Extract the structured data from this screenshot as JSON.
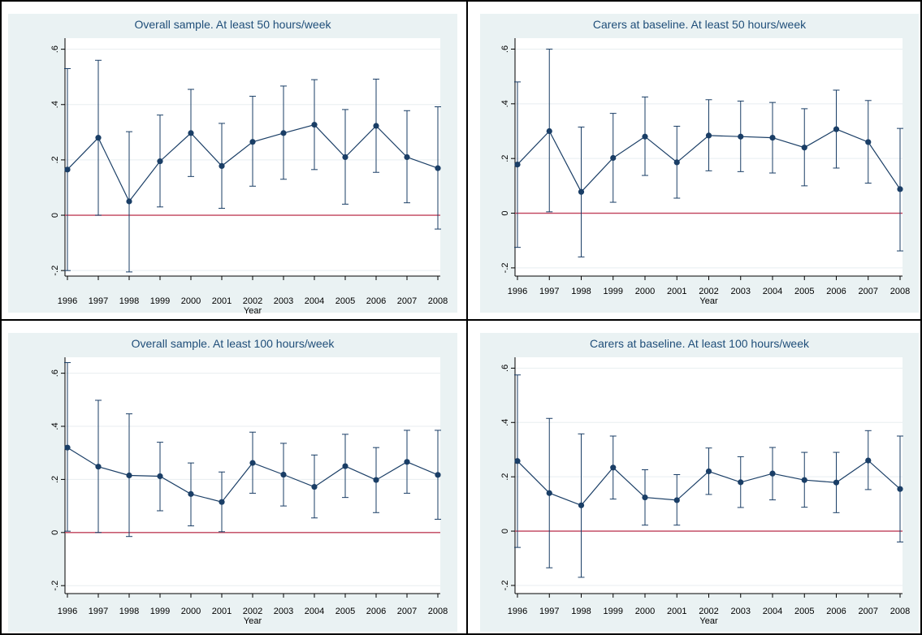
{
  "colors": {
    "panel_bg": "#eaf2f3",
    "plot_bg": "#ffffff",
    "series": "#1a3e66",
    "reference_line": "#c0405a",
    "grid": "#e8eef0",
    "title": "#1f4e79",
    "border": "#000000"
  },
  "chart_data": [
    {
      "type": "line",
      "title": "Overall sample. At least 50 hours/week",
      "xlabel": "Year",
      "ylabel": "",
      "x": [
        1996,
        1997,
        1998,
        1999,
        2000,
        2001,
        2002,
        2003,
        2004,
        2005,
        2006,
        2007,
        2008
      ],
      "y": [
        0.165,
        0.28,
        0.05,
        0.195,
        0.297,
        0.178,
        0.265,
        0.297,
        0.327,
        0.21,
        0.323,
        0.21,
        0.17
      ],
      "ci_low": [
        -0.2,
        0.0,
        -0.205,
        0.03,
        0.14,
        0.025,
        0.105,
        0.13,
        0.165,
        0.04,
        0.155,
        0.045,
        -0.05
      ],
      "ci_high": [
        0.53,
        0.56,
        0.302,
        0.362,
        0.455,
        0.332,
        0.43,
        0.467,
        0.49,
        0.382,
        0.492,
        0.378,
        0.392
      ],
      "ylim": [
        -0.22,
        0.64
      ],
      "yticks": [
        -0.2,
        0,
        0.2,
        0.4,
        0.6
      ],
      "ytick_labels": [
        "-.2",
        "0",
        ".2",
        ".4",
        ".6"
      ],
      "reference_y": 0,
      "grid": true
    },
    {
      "type": "line",
      "title": "Carers at baseline. At least 50 hours/week",
      "xlabel": "Year",
      "ylabel": "",
      "x": [
        1996,
        1997,
        1998,
        1999,
        2000,
        2001,
        2002,
        2003,
        2004,
        2005,
        2006,
        2007,
        2008
      ],
      "y": [
        0.178,
        0.3,
        0.078,
        0.202,
        0.28,
        0.186,
        0.284,
        0.28,
        0.276,
        0.24,
        0.307,
        0.26,
        0.088
      ],
      "ci_low": [
        -0.125,
        0.005,
        -0.16,
        0.04,
        0.138,
        0.055,
        0.155,
        0.152,
        0.147,
        0.1,
        0.165,
        0.11,
        -0.138
      ],
      "ci_high": [
        0.48,
        0.6,
        0.315,
        0.365,
        0.425,
        0.318,
        0.415,
        0.41,
        0.405,
        0.382,
        0.45,
        0.412,
        0.31
      ],
      "ylim": [
        -0.23,
        0.64
      ],
      "yticks": [
        -0.2,
        0,
        0.2,
        0.4,
        0.6
      ],
      "ytick_labels": [
        "-.2",
        "0",
        ".2",
        ".4",
        ".6"
      ],
      "reference_y": 0,
      "grid": true
    },
    {
      "type": "line",
      "title": "Overall sample. At least 100 hours/week",
      "xlabel": "Year",
      "ylabel": "",
      "x": [
        1996,
        1997,
        1998,
        1999,
        2000,
        2001,
        2002,
        2003,
        2004,
        2005,
        2006,
        2007,
        2008
      ],
      "y": [
        0.32,
        0.248,
        0.215,
        0.212,
        0.145,
        0.115,
        0.262,
        0.218,
        0.172,
        0.25,
        0.198,
        0.266,
        0.217
      ],
      "ci_low": [
        0.005,
        0.0,
        -0.015,
        0.082,
        0.025,
        0.003,
        0.148,
        0.1,
        0.055,
        0.132,
        0.075,
        0.148,
        0.05
      ],
      "ci_high": [
        0.64,
        0.498,
        0.447,
        0.34,
        0.262,
        0.228,
        0.378,
        0.336,
        0.292,
        0.37,
        0.32,
        0.385,
        0.385
      ],
      "ylim": [
        -0.23,
        0.66
      ],
      "yticks": [
        -0.2,
        0,
        0.2,
        0.4,
        0.6
      ],
      "ytick_labels": [
        "-.2",
        "0",
        ".2",
        ".4",
        ".6"
      ],
      "reference_y": 0,
      "grid": true
    },
    {
      "type": "line",
      "title": "Carers at baseline. At least 100 hours/week",
      "xlabel": "Year",
      "ylabel": "",
      "x": [
        1996,
        1997,
        1998,
        1999,
        2000,
        2001,
        2002,
        2003,
        2004,
        2005,
        2006,
        2007,
        2008
      ],
      "y": [
        0.258,
        0.14,
        0.095,
        0.234,
        0.124,
        0.114,
        0.22,
        0.18,
        0.212,
        0.188,
        0.179,
        0.26,
        0.155
      ],
      "ci_low": [
        -0.06,
        -0.135,
        -0.17,
        0.118,
        0.022,
        0.022,
        0.135,
        0.087,
        0.115,
        0.088,
        0.068,
        0.153,
        -0.04
      ],
      "ci_high": [
        0.575,
        0.415,
        0.358,
        0.35,
        0.226,
        0.208,
        0.306,
        0.274,
        0.308,
        0.29,
        0.29,
        0.37,
        0.35
      ],
      "ylim": [
        -0.23,
        0.64
      ],
      "yticks": [
        -0.2,
        0,
        0.2,
        0.4,
        0.6
      ],
      "ytick_labels": [
        "-.2",
        "0",
        ".2",
        ".4",
        ".6"
      ],
      "reference_y": 0,
      "grid": true
    }
  ]
}
